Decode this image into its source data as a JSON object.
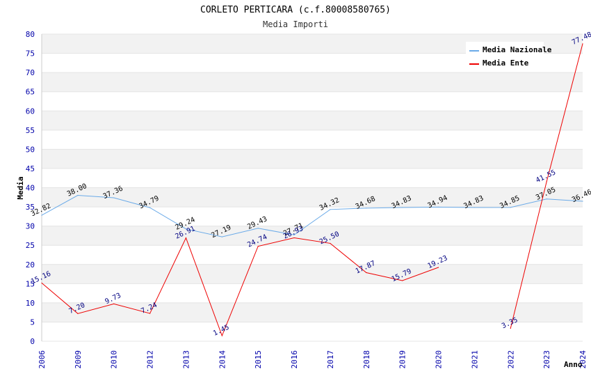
{
  "chart_data": {
    "type": "line",
    "title": "CORLETO PERTICARA (c.f.80008580765)",
    "subtitle": "Media Importi",
    "ylabel": "Media",
    "xlabel": "Anno",
    "ylim": [
      0,
      80
    ],
    "yticks": [
      0,
      5,
      10,
      15,
      20,
      25,
      30,
      35,
      40,
      45,
      50,
      55,
      60,
      65,
      70,
      75,
      80
    ],
    "categories": [
      "2006",
      "2009",
      "2010",
      "2012",
      "2013",
      "2014",
      "2015",
      "2016",
      "2017",
      "2018",
      "2019",
      "2020",
      "2021",
      "2022",
      "2023",
      "2024"
    ],
    "series": [
      {
        "name": "Media Nazionale",
        "color": "#6aaae8",
        "values": [
          32.82,
          38.0,
          37.36,
          34.79,
          29.24,
          27.19,
          29.43,
          27.71,
          34.32,
          34.68,
          34.83,
          34.94,
          34.83,
          34.85,
          37.05,
          36.46
        ],
        "labels": [
          "32.82",
          "38.00",
          "37.36",
          "34.79",
          "29.24",
          "27.19",
          "29.43",
          "27.71",
          "34.32",
          "34.68",
          "34.83",
          "34.94",
          "34.83",
          "34.85",
          "37.05",
          "36.46"
        ]
      },
      {
        "name": "Media Ente",
        "color": "#ee0000",
        "values": [
          15.16,
          7.2,
          9.73,
          7.24,
          26.91,
          1.45,
          24.74,
          26.93,
          25.5,
          17.87,
          15.79,
          19.23,
          null,
          3.35,
          41.55,
          77.48
        ],
        "labels": [
          "15.16",
          "7.20",
          "9.73",
          "7.24",
          "26.91",
          "1.45",
          "24.74",
          "26.93",
          "25.50",
          "17.87",
          "15.79",
          "19.23",
          null,
          "3.35",
          "41.55",
          "77.48"
        ]
      }
    ],
    "legend_position": "top-right",
    "grid": true
  }
}
